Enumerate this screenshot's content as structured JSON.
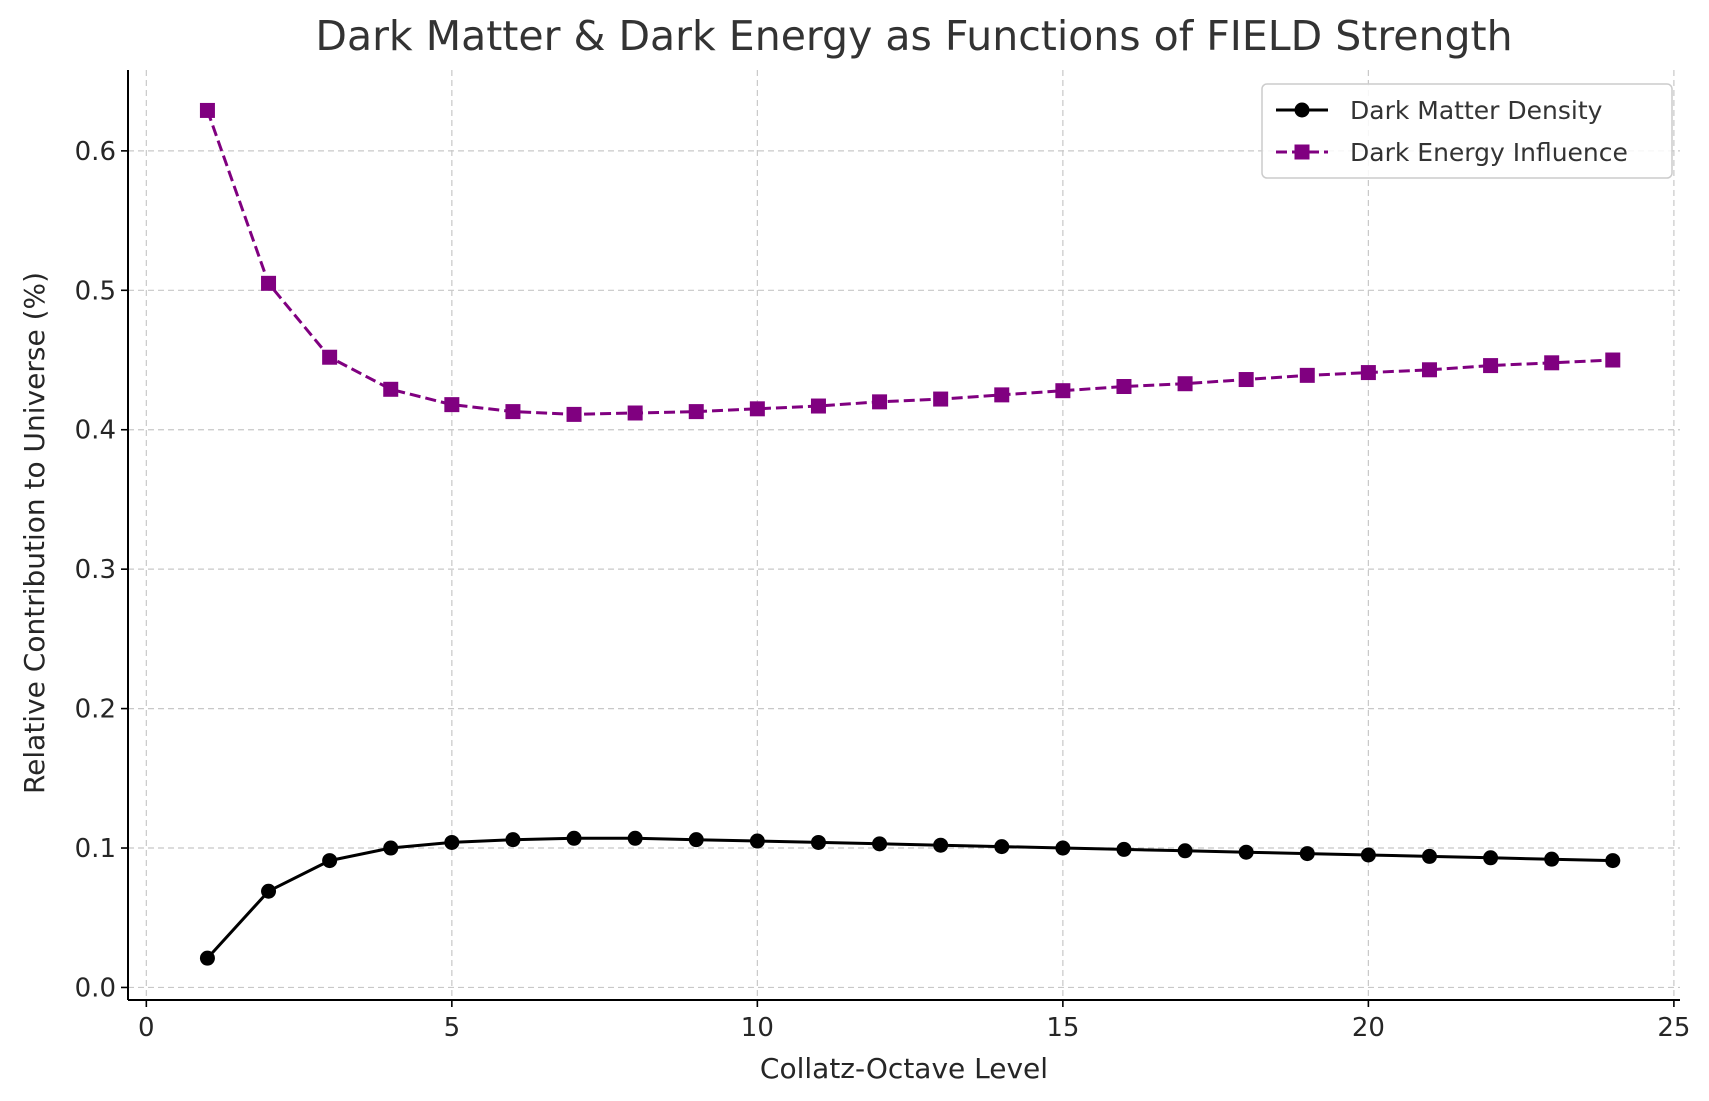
{
  "chart_data": {
    "type": "line",
    "title": "Dark Matter & Dark Energy as Functions of FIELD Strength",
    "xlabel": "Collatz-Octave Level",
    "ylabel": "Relative Contribution to Universe (%)",
    "xlim": [
      -0.3,
      25.1
    ],
    "ylim": [
      -0.009,
      0.658
    ],
    "xticks": [
      0,
      5,
      10,
      15,
      20,
      25
    ],
    "xtick_labels": [
      "0",
      "5",
      "10",
      "15",
      "20",
      "25"
    ],
    "yticks": [
      0.0,
      0.1,
      0.2,
      0.3,
      0.4,
      0.5,
      0.6
    ],
    "ytick_labels": [
      "0.0",
      "0.1",
      "0.2",
      "0.3",
      "0.4",
      "0.5",
      "0.6"
    ],
    "grid": true,
    "legend_position": "top-right",
    "x": [
      1,
      2,
      3,
      4,
      5,
      6,
      7,
      8,
      9,
      10,
      11,
      12,
      13,
      14,
      15,
      16,
      17,
      18,
      19,
      20,
      21,
      22,
      23,
      24
    ],
    "series": [
      {
        "name": "Dark Matter Density",
        "color": "#000000",
        "marker": "circle",
        "line_style": "solid",
        "values": [
          0.021,
          0.069,
          0.091,
          0.1,
          0.104,
          0.106,
          0.107,
          0.107,
          0.106,
          0.105,
          0.104,
          0.103,
          0.102,
          0.101,
          0.1,
          0.099,
          0.098,
          0.097,
          0.096,
          0.095,
          0.094,
          0.093,
          0.092,
          0.091
        ]
      },
      {
        "name": "Dark Energy Influence",
        "color": "#800080",
        "marker": "square",
        "line_style": "dashed",
        "values": [
          0.629,
          0.505,
          0.452,
          0.429,
          0.418,
          0.413,
          0.411,
          0.412,
          0.413,
          0.415,
          0.417,
          0.42,
          0.422,
          0.425,
          0.428,
          0.431,
          0.433,
          0.436,
          0.439,
          0.441,
          0.443,
          0.446,
          0.448,
          0.45
        ]
      }
    ]
  }
}
